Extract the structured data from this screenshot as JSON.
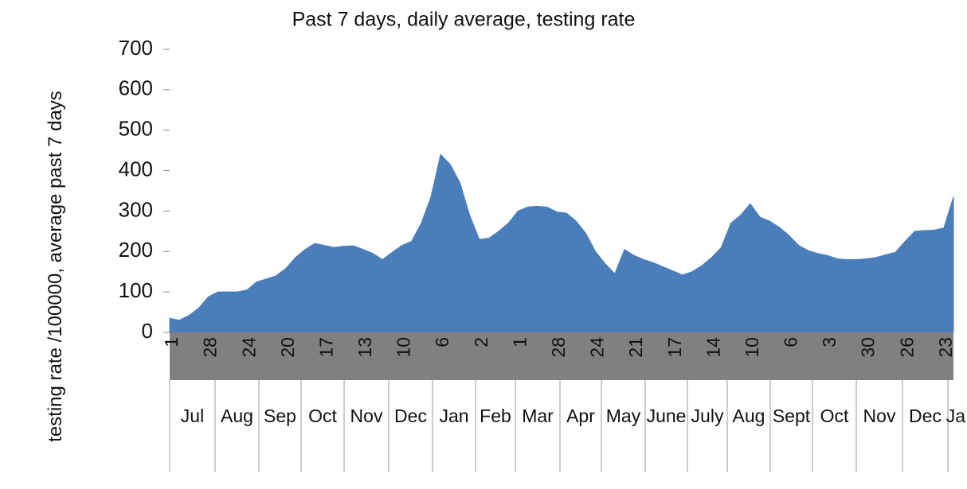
{
  "chart_data": {
    "type": "area",
    "title": "Past 7 days, daily average, testing rate",
    "y_label": "testing rate /100000, average past 7 days",
    "color": "#4a7ebb",
    "ylim": [
      0,
      700
    ],
    "yticks": [
      0,
      100,
      200,
      300,
      400,
      500,
      600,
      700
    ],
    "categories": [
      "1",
      null,
      null,
      null,
      "28",
      null,
      null,
      null,
      "24",
      null,
      null,
      null,
      "20",
      null,
      null,
      null,
      "17",
      null,
      null,
      null,
      "13",
      null,
      null,
      null,
      "10",
      null,
      null,
      null,
      "6",
      null,
      null,
      null,
      "2",
      null,
      null,
      null,
      "1",
      null,
      null,
      null,
      "28",
      null,
      null,
      null,
      "24",
      null,
      null,
      null,
      "21",
      null,
      null,
      null,
      "17",
      null,
      null,
      null,
      "14",
      null,
      null,
      null,
      "10",
      null,
      null,
      null,
      "6",
      null,
      null,
      null,
      "3",
      null,
      null,
      null,
      "30",
      null,
      null,
      null,
      "26",
      null,
      null,
      null,
      "23",
      null
    ],
    "values": [
      35,
      30,
      42,
      60,
      88,
      100,
      100,
      100,
      105,
      125,
      132,
      140,
      158,
      185,
      205,
      220,
      215,
      210,
      213,
      214,
      205,
      195,
      180,
      198,
      215,
      225,
      270,
      335,
      440,
      415,
      370,
      290,
      230,
      233,
      250,
      270,
      300,
      310,
      312,
      310,
      298,
      295,
      275,
      245,
      200,
      170,
      145,
      205,
      190,
      180,
      172,
      162,
      152,
      142,
      150,
      165,
      185,
      210,
      270,
      290,
      318,
      285,
      275,
      260,
      240,
      215,
      202,
      195,
      190,
      182,
      180,
      180,
      182,
      185,
      192,
      198,
      225,
      250,
      252,
      253,
      258,
      335
    ],
    "months": [
      "Jul",
      "Aug",
      "Sep",
      "Oct",
      "Nov",
      "Dec",
      "Jan",
      "Feb",
      "Mar",
      "Apr",
      "May",
      "June",
      "July",
      "Aug",
      "Sept",
      "Oct",
      "Nov",
      "Dec",
      "Ja"
    ]
  }
}
